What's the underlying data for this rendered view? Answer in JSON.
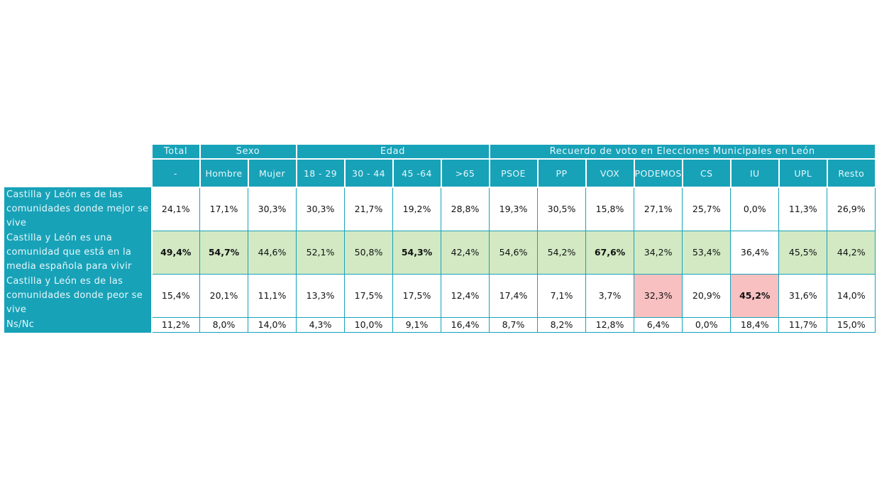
{
  "chart_data": {
    "type": "table",
    "header_groups": [
      "Total",
      "Sexo",
      "Edad",
      "Recuerdo de voto en Elecciones Municipales en León"
    ],
    "columns": [
      "-",
      "Hombre",
      "Mujer",
      "18 - 29",
      "30 - 44",
      "45 -64",
      ">65",
      "PSOE",
      "PP",
      "VOX",
      "PODEMOS",
      "CS",
      "IU",
      "UPL",
      "Resto"
    ],
    "rows": [
      {
        "label": "Castilla y León es de las comunidades donde mejor se vive",
        "values": [
          "24,1%",
          "17,1%",
          "30,3%",
          "30,3%",
          "21,7%",
          "19,2%",
          "28,8%",
          "19,3%",
          "30,5%",
          "15,8%",
          "27,1%",
          "25,7%",
          "0,0%",
          "11,3%",
          "26,9%"
        ],
        "styles": [
          "",
          "",
          "",
          "",
          "",
          "",
          "",
          "",
          "",
          "",
          "",
          "",
          "",
          "",
          ""
        ]
      },
      {
        "label": "Castilla y León es una comunidad que está en la media española para vivir",
        "values": [
          "49,4%",
          "54,7%",
          "44,6%",
          "52,1%",
          "50,8%",
          "54,3%",
          "42,4%",
          "54,6%",
          "54,2%",
          "67,6%",
          "34,2%",
          "53,4%",
          "36,4%",
          "45,5%",
          "44,2%"
        ],
        "styles": [
          "g b",
          "g b",
          "g",
          "g",
          "g",
          "g b",
          "g",
          "g",
          "g",
          "g b",
          "g",
          "g",
          "",
          "g",
          "g"
        ]
      },
      {
        "label": "Castilla y León es de las comunidades donde peor se vive",
        "values": [
          "15,4%",
          "20,1%",
          "11,1%",
          "13,3%",
          "17,5%",
          "17,5%",
          "12,4%",
          "17,4%",
          "7,1%",
          "3,7%",
          "32,3%",
          "20,9%",
          "45,2%",
          "31,6%",
          "14,0%"
        ],
        "styles": [
          "",
          "",
          "",
          "",
          "",
          "",
          "",
          "",
          "",
          "",
          "p",
          "",
          "p b",
          "",
          ""
        ]
      },
      {
        "label": "Ns/Nc",
        "values": [
          "11,2%",
          "8,0%",
          "14,0%",
          "4,3%",
          "10,0%",
          "9,1%",
          "16,4%",
          "8,7%",
          "8,2%",
          "12,8%",
          "6,4%",
          "0,0%",
          "18,4%",
          "11,7%",
          "15,0%"
        ],
        "styles": [
          "",
          "",
          "",
          "",
          "",
          "",
          "",
          "",
          "",
          "",
          "",
          "",
          "",
          "",
          ""
        ]
      }
    ],
    "colors": {
      "header": "#17a2b8",
      "highlight_green": "#d2e9c4",
      "highlight_red": "#f9c0c2"
    }
  }
}
